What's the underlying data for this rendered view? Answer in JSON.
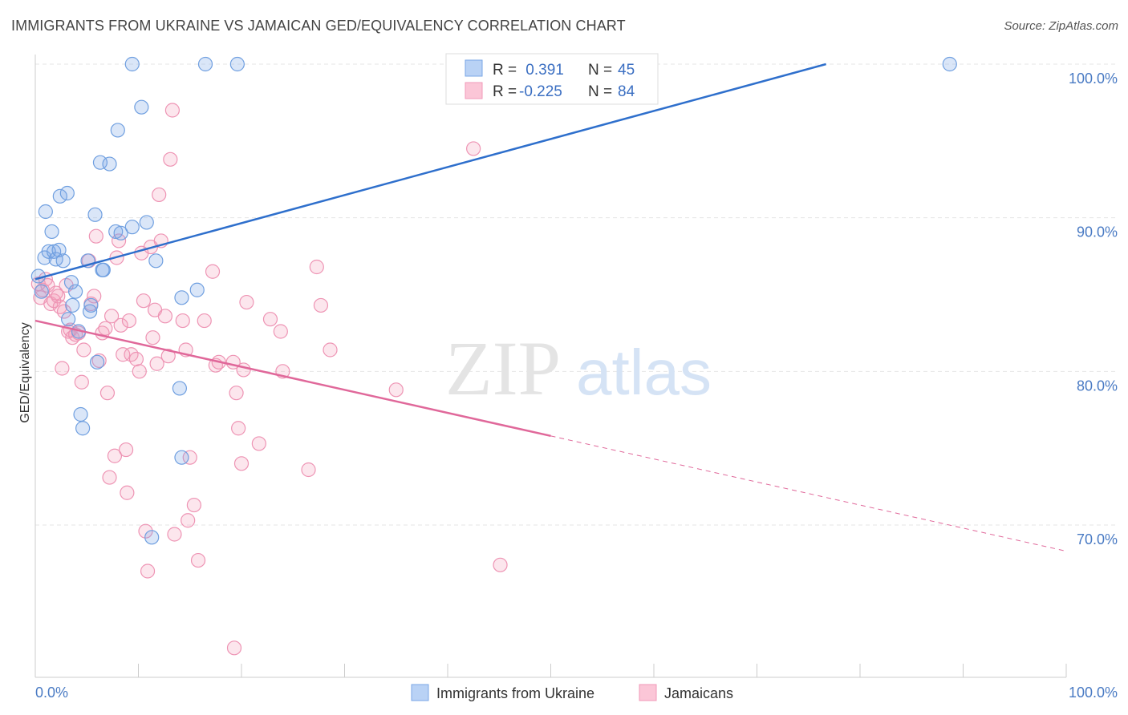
{
  "title": "IMMIGRANTS FROM UKRAINE VS JAMAICAN GED/EQUIVALENCY CORRELATION CHART",
  "source": "Source: ZipAtlas.com",
  "watermark": {
    "zip": "ZIP",
    "atlas": "atlas"
  },
  "chart_data": {
    "type": "scatter",
    "ylabel": "GED/Equivalency",
    "xlim": [
      0,
      100
    ],
    "ylim": [
      60,
      100
    ],
    "x_tick_labels": {
      "min": "0.0%",
      "max": "100.0%"
    },
    "y_ticks": [
      {
        "value": 100,
        "label": "100.0%"
      },
      {
        "value": 90,
        "label": "90.0%"
      },
      {
        "value": 80,
        "label": "80.0%"
      },
      {
        "value": 70,
        "label": "70.0%"
      }
    ],
    "grid": true,
    "legend": {
      "placement": "top-center",
      "entries": [
        {
          "r_label": "R =",
          "r": " 0.391",
          "n_label": "N =",
          "n": "45"
        },
        {
          "r_label": "R =",
          "r": "-0.225",
          "n_label": "N =",
          "n": "84"
        }
      ]
    },
    "series": [
      {
        "name": "Immigrants from Ukraine",
        "color": "#7aa7e6",
        "line_color": "#2e6fcc",
        "trend": {
          "x0": 0,
          "y0": 86.0,
          "x1": 76.7,
          "y1": 100.0
        },
        "points": [
          [
            0.3,
            86.2
          ],
          [
            0.6,
            85.2
          ],
          [
            0.9,
            87.4
          ],
          [
            1.0,
            90.4
          ],
          [
            1.3,
            87.8
          ],
          [
            1.6,
            89.1
          ],
          [
            1.8,
            87.8
          ],
          [
            2.0,
            87.3
          ],
          [
            2.3,
            87.9
          ],
          [
            2.4,
            91.4
          ],
          [
            2.7,
            87.2
          ],
          [
            3.1,
            91.6
          ],
          [
            3.2,
            83.4
          ],
          [
            3.5,
            85.8
          ],
          [
            3.6,
            84.3
          ],
          [
            3.9,
            85.2
          ],
          [
            4.2,
            82.6
          ],
          [
            4.4,
            77.2
          ],
          [
            4.6,
            76.3
          ],
          [
            5.1,
            87.2
          ],
          [
            5.3,
            83.9
          ],
          [
            5.4,
            84.3
          ],
          [
            5.8,
            90.2
          ],
          [
            6.0,
            80.6
          ],
          [
            6.3,
            93.6
          ],
          [
            6.5,
            86.6
          ],
          [
            6.6,
            86.6
          ],
          [
            7.2,
            93.5
          ],
          [
            7.8,
            89.1
          ],
          [
            8.0,
            95.7
          ],
          [
            8.3,
            89.0
          ],
          [
            9.4,
            89.4
          ],
          [
            9.4,
            100.0
          ],
          [
            10.3,
            97.2
          ],
          [
            10.8,
            89.7
          ],
          [
            11.3,
            69.2
          ],
          [
            11.7,
            87.2
          ],
          [
            14.0,
            78.9
          ],
          [
            14.2,
            84.8
          ],
          [
            14.2,
            74.4
          ],
          [
            15.7,
            85.3
          ],
          [
            16.5,
            100.0
          ],
          [
            19.6,
            100.0
          ],
          [
            50.2,
            100.0
          ],
          [
            88.7,
            100.0
          ]
        ]
      },
      {
        "name": "Jamaicans",
        "color": "#f29ab8",
        "line_color": "#e0689a",
        "trend": {
          "x0": 0,
          "y0": 83.3,
          "x1": 50.0,
          "y1": 75.8
        },
        "trend_dashed": {
          "x0": 50.0,
          "y0": 75.8,
          "x1": 100.0,
          "y1": 68.3
        },
        "points": [
          [
            0.3,
            85.7
          ],
          [
            0.5,
            84.8
          ],
          [
            0.7,
            85.3
          ],
          [
            1.0,
            86.0
          ],
          [
            1.2,
            85.6
          ],
          [
            1.5,
            84.4
          ],
          [
            1.8,
            84.6
          ],
          [
            2.0,
            85.1
          ],
          [
            2.2,
            84.9
          ],
          [
            2.4,
            84.2
          ],
          [
            2.6,
            80.2
          ],
          [
            2.8,
            83.9
          ],
          [
            3.0,
            85.6
          ],
          [
            3.2,
            82.6
          ],
          [
            3.4,
            82.7
          ],
          [
            3.6,
            82.2
          ],
          [
            3.9,
            82.4
          ],
          [
            4.2,
            82.5
          ],
          [
            4.5,
            79.3
          ],
          [
            4.7,
            81.4
          ],
          [
            5.2,
            87.2
          ],
          [
            5.4,
            84.4
          ],
          [
            5.7,
            84.9
          ],
          [
            5.9,
            88.8
          ],
          [
            6.2,
            80.7
          ],
          [
            6.5,
            82.5
          ],
          [
            6.8,
            82.8
          ],
          [
            7.0,
            78.6
          ],
          [
            7.2,
            73.1
          ],
          [
            7.4,
            83.6
          ],
          [
            7.7,
            74.5
          ],
          [
            7.9,
            87.4
          ],
          [
            8.1,
            88.5
          ],
          [
            8.3,
            83.0
          ],
          [
            8.5,
            81.1
          ],
          [
            8.8,
            74.9
          ],
          [
            8.9,
            72.1
          ],
          [
            9.1,
            83.3
          ],
          [
            9.3,
            81.1
          ],
          [
            9.8,
            80.8
          ],
          [
            10.1,
            80.0
          ],
          [
            10.3,
            87.7
          ],
          [
            10.5,
            84.6
          ],
          [
            10.7,
            69.6
          ],
          [
            10.9,
            67.0
          ],
          [
            11.2,
            88.1
          ],
          [
            11.4,
            82.2
          ],
          [
            11.6,
            84.0
          ],
          [
            11.8,
            80.5
          ],
          [
            12.0,
            91.5
          ],
          [
            12.2,
            88.5
          ],
          [
            12.6,
            83.6
          ],
          [
            12.9,
            81.0
          ],
          [
            13.1,
            93.8
          ],
          [
            13.3,
            97.0
          ],
          [
            13.5,
            69.4
          ],
          [
            14.3,
            83.3
          ],
          [
            14.6,
            81.4
          ],
          [
            14.8,
            70.3
          ],
          [
            15.0,
            74.4
          ],
          [
            15.4,
            71.3
          ],
          [
            15.8,
            67.7
          ],
          [
            16.4,
            83.3
          ],
          [
            17.2,
            86.5
          ],
          [
            17.5,
            80.4
          ],
          [
            17.8,
            80.6
          ],
          [
            19.2,
            80.6
          ],
          [
            19.3,
            62.0
          ],
          [
            19.5,
            78.6
          ],
          [
            19.7,
            76.3
          ],
          [
            20.0,
            74.0
          ],
          [
            20.2,
            80.1
          ],
          [
            20.5,
            84.5
          ],
          [
            21.7,
            75.3
          ],
          [
            22.8,
            83.4
          ],
          [
            23.8,
            82.6
          ],
          [
            24.0,
            80.0
          ],
          [
            26.5,
            73.6
          ],
          [
            27.3,
            86.8
          ],
          [
            27.7,
            84.3
          ],
          [
            28.6,
            81.4
          ],
          [
            35.0,
            78.8
          ],
          [
            42.5,
            94.5
          ],
          [
            45.1,
            67.4
          ]
        ]
      }
    ]
  }
}
